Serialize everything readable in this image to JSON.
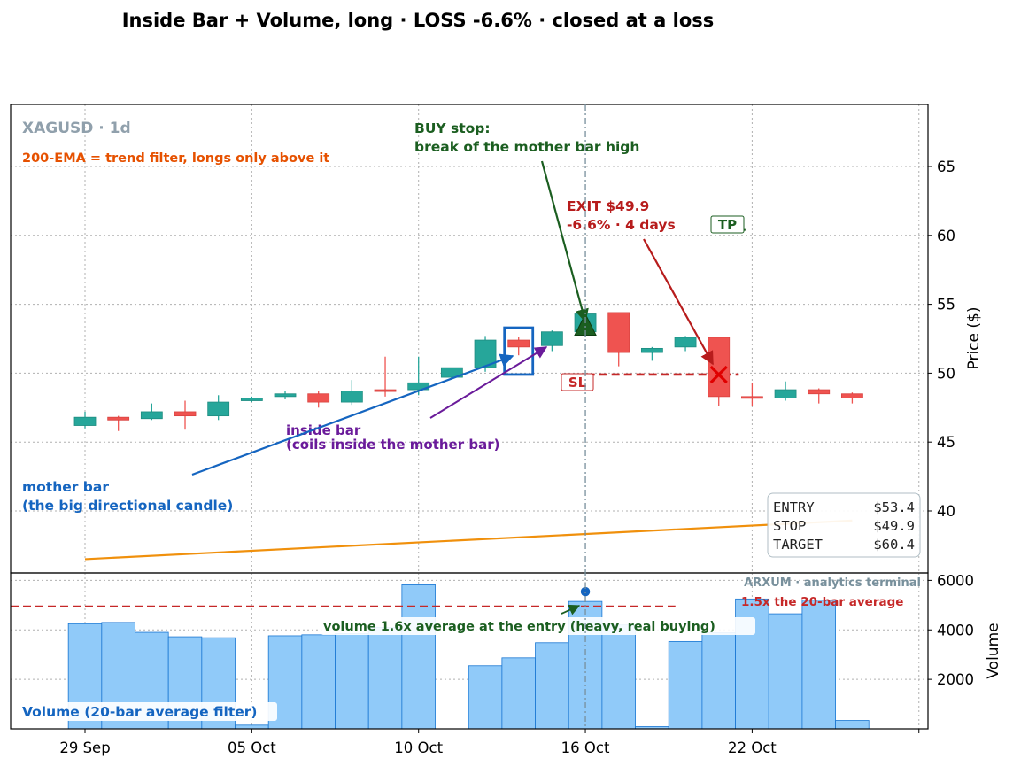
{
  "title": "Inside Bar + Volume, long · LOSS -6.6% · closed at a loss",
  "colors": {
    "bull": "#26a69a",
    "bear": "#ef5350",
    "ema": "#f0900c",
    "entry": "#1b5e20",
    "exit": "#b71c1c",
    "annot_blue": "#1565c0",
    "annot_purple": "#6a1b9a",
    "annot_orange": "#e65100",
    "volume": "#90caf9"
  },
  "chart_data": [
    {
      "type": "candlestick",
      "ylabel": "Price ($)",
      "ylim": [
        35.5,
        69.5
      ],
      "yticks": [
        40,
        45,
        50,
        55,
        60,
        65
      ],
      "grid": true,
      "xticks": [
        {
          "index": 0,
          "label": "29 Sep"
        },
        {
          "index": 5,
          "label": "05 Oct"
        },
        {
          "index": 10,
          "label": "10 Oct"
        },
        {
          "index": 15,
          "label": "16 Oct"
        },
        {
          "index": 20,
          "label": "22 Oct"
        }
      ],
      "candles": [
        {
          "o": 46.2,
          "h": 47.2,
          "l": 46.0,
          "c": 46.8
        },
        {
          "o": 46.8,
          "h": 46.9,
          "l": 45.8,
          "c": 46.6
        },
        {
          "o": 46.7,
          "h": 47.8,
          "l": 46.6,
          "c": 47.2
        },
        {
          "o": 47.2,
          "h": 48.0,
          "l": 45.9,
          "c": 46.9
        },
        {
          "o": 46.9,
          "h": 48.4,
          "l": 46.6,
          "c": 47.9
        },
        {
          "o": 48.0,
          "h": 48.3,
          "l": 47.9,
          "c": 48.2
        },
        {
          "o": 48.3,
          "h": 48.7,
          "l": 48.1,
          "c": 48.5
        },
        {
          "o": 48.5,
          "h": 48.7,
          "l": 47.5,
          "c": 47.9
        },
        {
          "o": 47.9,
          "h": 49.5,
          "l": 47.7,
          "c": 48.7
        },
        {
          "o": 48.8,
          "h": 51.2,
          "l": 48.3,
          "c": 48.7
        },
        {
          "o": 48.8,
          "h": 51.2,
          "l": 48.4,
          "c": 49.3
        },
        {
          "o": 49.7,
          "h": 50.4,
          "l": 49.6,
          "c": 50.4
        },
        {
          "o": 50.4,
          "h": 52.7,
          "l": 50.1,
          "c": 52.4
        },
        {
          "o": 52.4,
          "h": 52.6,
          "l": 51.3,
          "c": 51.9
        },
        {
          "o": 52.0,
          "h": 53.1,
          "l": 51.6,
          "c": 53.0
        },
        {
          "o": 53.0,
          "h": 54.3,
          "l": 52.6,
          "c": 54.3
        },
        {
          "o": 54.4,
          "h": 54.4,
          "l": 50.5,
          "c": 51.5
        },
        {
          "o": 51.5,
          "h": 51.9,
          "l": 50.9,
          "c": 51.8
        },
        {
          "o": 51.9,
          "h": 52.7,
          "l": 51.6,
          "c": 52.6
        },
        {
          "o": 52.6,
          "h": 52.6,
          "l": 47.6,
          "c": 48.3
        },
        {
          "o": 48.3,
          "h": 49.3,
          "l": 47.6,
          "c": 48.2
        },
        {
          "o": 48.2,
          "h": 49.4,
          "l": 48.0,
          "c": 48.8
        },
        {
          "o": 48.8,
          "h": 48.9,
          "l": 47.8,
          "c": 48.5
        },
        {
          "o": 48.5,
          "h": 48.6,
          "l": 47.8,
          "c": 48.2
        }
      ],
      "ema": [
        [
          0,
          36.5
        ],
        [
          23,
          39.3
        ]
      ],
      "mother_bar_index": 12,
      "inside_bar_index": 13,
      "entry": {
        "index": 15,
        "price": 53.4
      },
      "exit": {
        "index": 19,
        "price": 49.9
      },
      "stop": 49.9,
      "target": 60.4
    },
    {
      "type": "bar",
      "ylabel": "Volume",
      "ylim": [
        0,
        6300
      ],
      "yticks": [
        2000,
        4000,
        6000
      ],
      "grid": true,
      "values": [
        4250,
        4300,
        3900,
        3720,
        3680,
        150,
        3760,
        3800,
        3850,
        4100,
        5820,
        0,
        2550,
        2870,
        3480,
        5150,
        4200,
        90,
        3530,
        3880,
        5250,
        4650,
        5200,
        340
      ],
      "threshold": 4950,
      "entry_volume": 5150
    }
  ],
  "labels": {
    "symbol": "XAGUSD · 1d",
    "ema_note": "200-EMA = trend filter, longs only above it",
    "buy_stop_line1": "BUY stop:",
    "buy_stop_line2": "break of the mother bar high",
    "exit_line1": "EXIT $49.9",
    "exit_line2": "-6.6%  ·  4 days",
    "tp": "TP",
    "sl": "SL",
    "inside_line1": "inside bar",
    "inside_line2": "(coils inside the mother bar)",
    "mother_line1": "mother bar",
    "mother_line2": "(the big directional candle)",
    "volume_note": "volume 1.6x average at the entry (heavy, real buying)",
    "threshold_note": "1.5x the 20-bar average",
    "volume_filter": "Volume (20-bar average filter)",
    "watermark": "ARXUM · analytics terminal"
  },
  "trade_box": [
    {
      "label": "ENTRY",
      "value": "$53.4"
    },
    {
      "label": "STOP",
      "value": "$49.9"
    },
    {
      "label": "TARGET",
      "value": "$60.4"
    }
  ]
}
